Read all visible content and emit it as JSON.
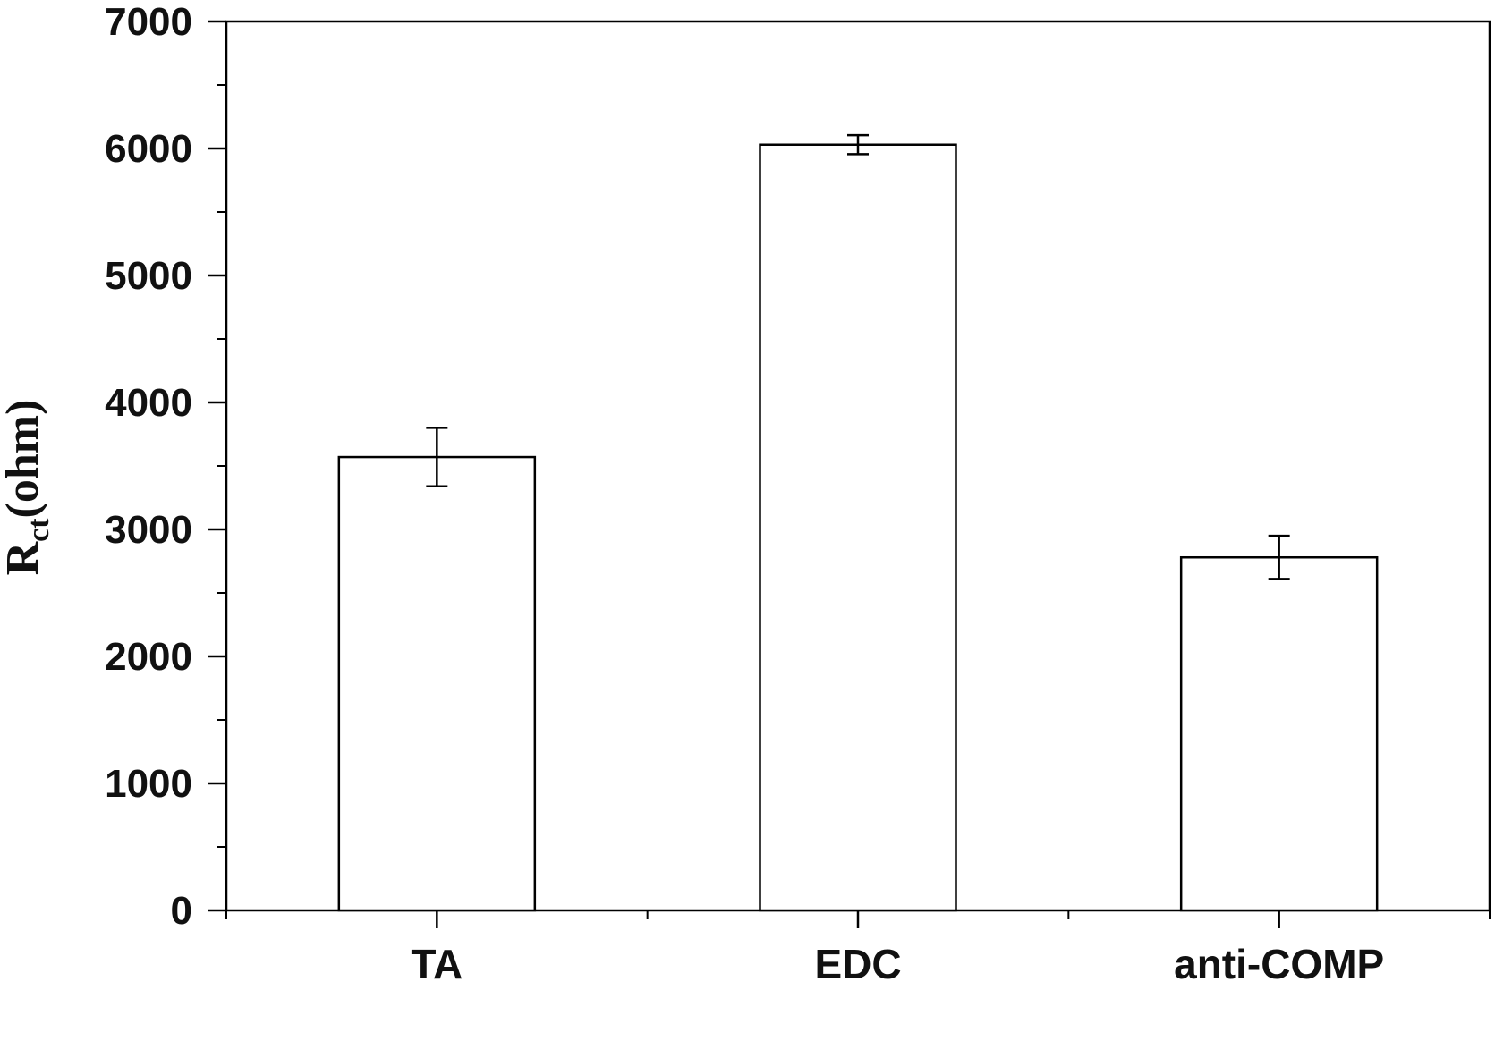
{
  "chart_data": {
    "type": "bar",
    "title": "",
    "xlabel": "",
    "ylabel": {
      "main": "R",
      "subscript": "ct",
      "suffix": "(ohm)"
    },
    "categories": [
      "TA",
      "EDC",
      "anti-COMP"
    ],
    "values": [
      3570,
      6030,
      2780
    ],
    "errors": [
      230,
      75,
      170
    ],
    "ylim": [
      0,
      7000
    ],
    "yticks": [
      "0",
      "1000",
      "2000",
      "3000",
      "4000",
      "5000",
      "6000",
      "7000"
    ],
    "ytick_values": [
      0,
      1000,
      2000,
      3000,
      4000,
      5000,
      6000,
      7000
    ],
    "minor_ytick_step": 500,
    "grid": false,
    "bar_color": "#ffffff",
    "edge_color": "#000000"
  }
}
